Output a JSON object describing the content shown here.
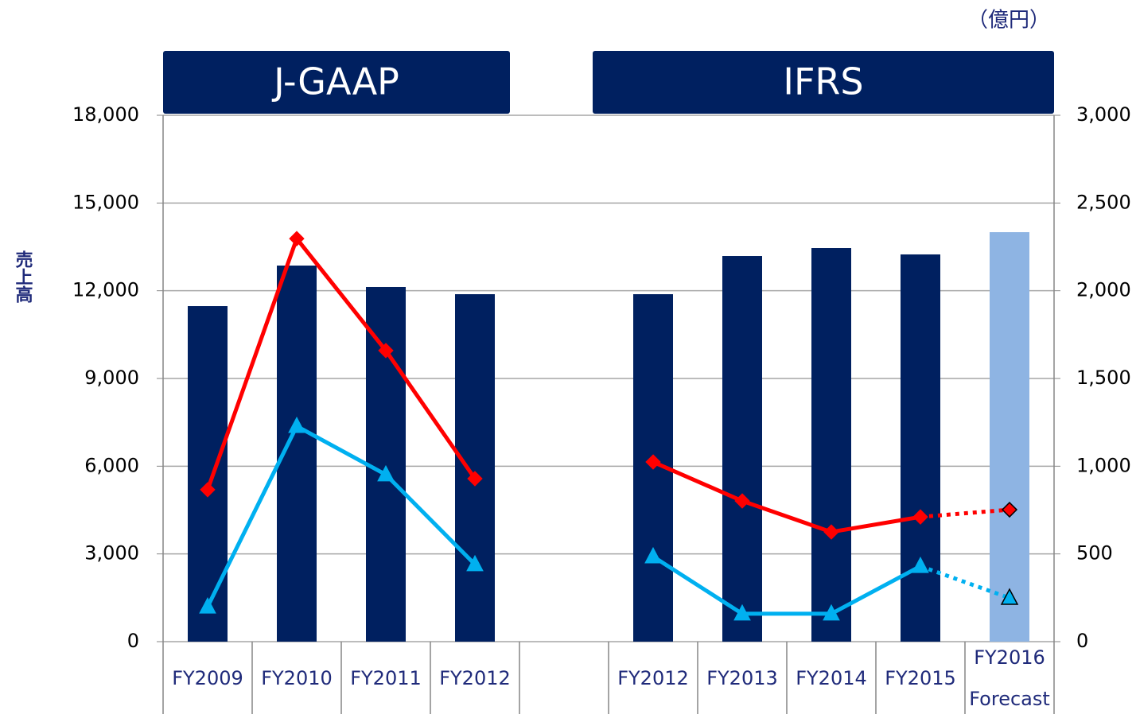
{
  "chart_data": {
    "type": "bar",
    "unit_label": "（億円）",
    "y_label": "売上高",
    "groups": [
      {
        "label": "J-GAAP",
        "from": 0,
        "to": 3
      },
      {
        "label": "IFRS",
        "from": 5,
        "to": 9
      }
    ],
    "categories": [
      "FY2009",
      "FY2010",
      "FY2011",
      "FY2012",
      null,
      "FY2012",
      "FY2013",
      "FY2014",
      "FY2015",
      "FY2016 Forecast"
    ],
    "series": [
      {
        "type": "bar",
        "color": "#002060",
        "colors": [
          "#002060",
          "#002060",
          "#002060",
          "#002060",
          null,
          "#002060",
          "#002060",
          "#002060",
          "#002060",
          "#8eb4e3"
        ],
        "values": [
          11474,
          12861,
          12127,
          11882,
          null,
          11882,
          13187,
          13459,
          13242,
          14003
        ]
      },
      {
        "type": "line",
        "axis": "y2",
        "color": "#ff0000",
        "marker": "diamond",
        "point_styles": [
          "solid",
          "solid",
          "solid",
          "solid",
          null,
          "solid",
          "solid",
          "solid",
          "solid",
          "dotted"
        ],
        "values": [
          866,
          2297,
          1659,
          929,
          null,
          1024,
          802,
          625,
          711,
          752
        ]
      },
      {
        "type": "line",
        "axis": "y2",
        "color": "#00b0f0",
        "marker": "triangle",
        "point_styles": [
          "solid",
          "solid",
          "solid",
          "solid",
          null,
          "solid",
          "solid",
          "solid",
          "solid",
          "dotted"
        ],
        "values": [
          199,
          1228,
          952,
          440,
          null,
          485,
          159,
          159,
          430,
          249
        ]
      }
    ],
    "ylim": [
      0,
      18000
    ],
    "yticks": [
      0,
      {
        "value": 3000,
        "label": "3,000"
      },
      {
        "value": 6000,
        "label": "6,000"
      },
      {
        "value": 9000,
        "label": "9,000"
      },
      {
        "value": 12000,
        "label": "12,000"
      },
      {
        "value": 15000,
        "label": "15,000"
      },
      {
        "value": 18000,
        "label": "18,000"
      }
    ],
    "y2lim": [
      0,
      3000
    ],
    "y2ticks": [
      0,
      500,
      {
        "value": 1000,
        "label": "1,000"
      },
      {
        "value": 1500,
        "label": "1,500"
      },
      {
        "value": 2000,
        "label": "2,000"
      },
      {
        "value": 2500,
        "label": "2,500"
      },
      {
        "value": 3000,
        "label": "3,000"
      }
    ],
    "grid": true
  }
}
